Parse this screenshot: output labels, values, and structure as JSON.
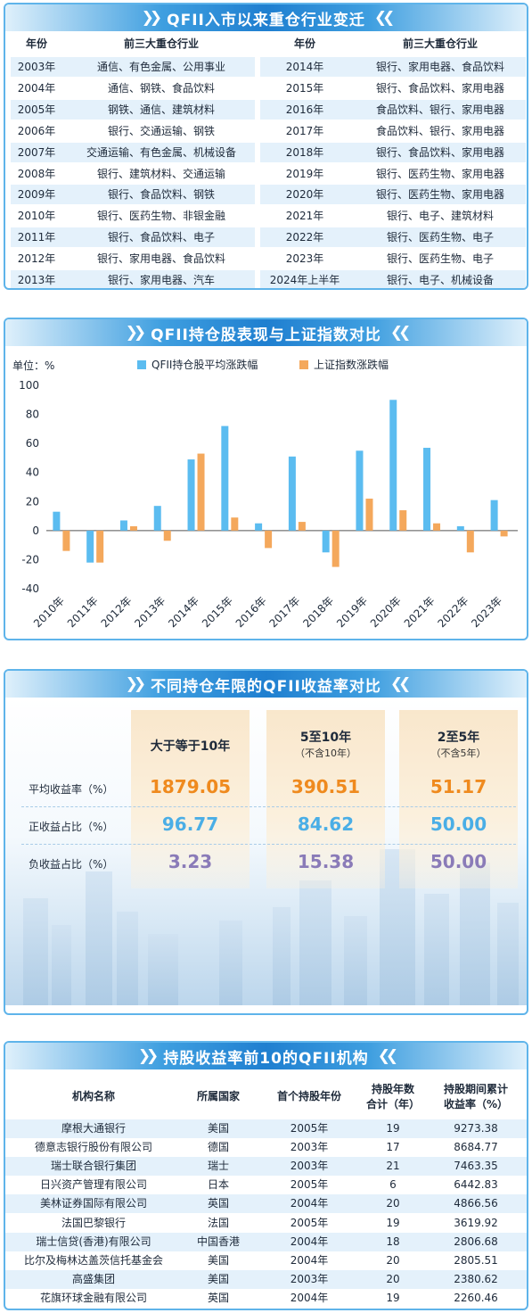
{
  "panel1": {
    "title": "QFII入市以来重仓行业变迁",
    "headers": [
      "年份",
      "前三大重仓行业",
      "年份",
      "前三大重仓行业"
    ],
    "left_rows": [
      {
        "year": "2003年",
        "industries": "通信、有色金属、公用事业"
      },
      {
        "year": "2004年",
        "industries": "通信、钢铁、食品饮料"
      },
      {
        "year": "2005年",
        "industries": "钢铁、通信、建筑材料"
      },
      {
        "year": "2006年",
        "industries": "银行、交通运输、钢铁"
      },
      {
        "year": "2007年",
        "industries": "交通运输、有色金属、机械设备"
      },
      {
        "year": "2008年",
        "industries": "银行、建筑材料、交通运输"
      },
      {
        "year": "2009年",
        "industries": "银行、食品饮料、钢铁"
      },
      {
        "year": "2010年",
        "industries": "银行、医药生物、非银金融"
      },
      {
        "year": "2011年",
        "industries": "银行、食品饮料、电子"
      },
      {
        "year": "2012年",
        "industries": "银行、家用电器、食品饮料"
      },
      {
        "year": "2013年",
        "industries": "银行、家用电器、汽车"
      }
    ],
    "right_rows": [
      {
        "year": "2014年",
        "industries": "银行、家用电器、食品饮料"
      },
      {
        "year": "2015年",
        "industries": "银行、食品饮料、家用电器"
      },
      {
        "year": "2016年",
        "industries": "食品饮料、银行、家用电器"
      },
      {
        "year": "2017年",
        "industries": "食品饮料、银行、家用电器"
      },
      {
        "year": "2018年",
        "industries": "银行、食品饮料、家用电器"
      },
      {
        "year": "2019年",
        "industries": "银行、医药生物、家用电器"
      },
      {
        "year": "2020年",
        "industries": "银行、医药生物、家用电器"
      },
      {
        "year": "2021年",
        "industries": "银行、电子、建筑材料"
      },
      {
        "year": "2022年",
        "industries": "银行、医药生物、电子"
      },
      {
        "year": "2023年",
        "industries": "银行、医药生物、电子"
      },
      {
        "year": "2024年上半年",
        "industries": "银行、电子、机械设备"
      }
    ]
  },
  "panel2": {
    "title": "QFII持仓股表现与上证指数对比",
    "unit_label": "单位：%"
  },
  "chart_data": {
    "type": "bar",
    "categories": [
      "2010年",
      "2011年",
      "2012年",
      "2013年",
      "2014年",
      "2015年",
      "2016年",
      "2017年",
      "2018年",
      "2019年",
      "2020年",
      "2021年",
      "2022年",
      "2023年"
    ],
    "series": [
      {
        "name": "QFII持仓股平均涨跌幅",
        "color": "#5bbcf0",
        "values": [
          13,
          -22,
          7,
          17,
          49,
          72,
          5,
          51,
          -15,
          55,
          90,
          57,
          3,
          21
        ]
      },
      {
        "name": "上证指数涨跌幅",
        "color": "#f4a85c",
        "values": [
          -14,
          -22,
          3,
          -7,
          53,
          9,
          -12,
          6,
          -25,
          22,
          14,
          5,
          -15,
          -4
        ]
      }
    ],
    "ylim": [
      -40,
      100
    ],
    "yticks": [
      -40,
      -20,
      0,
      20,
      40,
      60,
      80,
      100
    ],
    "legend_position": "top",
    "grid": false
  },
  "panel3": {
    "title": "不同持仓年限的QFII收益率对比",
    "columns": [
      {
        "head": "大于等于10年",
        "sub": ""
      },
      {
        "head": "5至10年",
        "sub": "（不含10年）"
      },
      {
        "head": "2至5年",
        "sub": "（不含5年）"
      }
    ],
    "rows": [
      {
        "label": "平均收益率（%）",
        "color": "#ef8a1e",
        "values": [
          "1879.05",
          "390.51",
          "51.17"
        ]
      },
      {
        "label": "正收益占比（%）",
        "color": "#4aaee6",
        "values": [
          "96.77",
          "84.62",
          "50.00"
        ]
      },
      {
        "label": "负收益占比（%）",
        "color": "#8a7bb8",
        "values": [
          "3.23",
          "15.38",
          "50.00"
        ]
      }
    ]
  },
  "panel4": {
    "title": "持股收益率前10的QFII机构",
    "headers": {
      "name": "机构名称",
      "country": "所属国家",
      "first_year": "首个持股年份",
      "years_line1": "持股年数",
      "years_line2": "合计（年）",
      "return_line1": "持股期间累计",
      "return_line2": "收益率（%）"
    },
    "rows": [
      {
        "name": "摩根大通银行",
        "country": "美国",
        "first_year": "2005年",
        "years": "19",
        "return": "9273.38"
      },
      {
        "name": "德意志银行股份有限公司",
        "country": "德国",
        "first_year": "2003年",
        "years": "17",
        "return": "8684.77"
      },
      {
        "name": "瑞士联合银行集团",
        "country": "瑞士",
        "first_year": "2003年",
        "years": "21",
        "return": "7463.35"
      },
      {
        "name": "日兴资产管理有限公司",
        "country": "日本",
        "first_year": "2005年",
        "years": "6",
        "return": "6442.83"
      },
      {
        "name": "美林证券国际有限公司",
        "country": "英国",
        "first_year": "2004年",
        "years": "20",
        "return": "4866.56"
      },
      {
        "name": "法国巴黎银行",
        "country": "法国",
        "first_year": "2005年",
        "years": "19",
        "return": "3619.92"
      },
      {
        "name": "瑞士信贷(香港)有限公司",
        "country": "中国香港",
        "first_year": "2004年",
        "years": "18",
        "return": "2806.68"
      },
      {
        "name": "比尔及梅林达盖茨信托基金会",
        "country": "美国",
        "first_year": "2004年",
        "years": "20",
        "return": "2805.51"
      },
      {
        "name": "高盛集团",
        "country": "美国",
        "first_year": "2003年",
        "years": "20",
        "return": "2380.62"
      },
      {
        "name": "花旗环球金融有限公司",
        "country": "英国",
        "first_year": "2004年",
        "years": "19",
        "return": "2260.46"
      }
    ]
  }
}
